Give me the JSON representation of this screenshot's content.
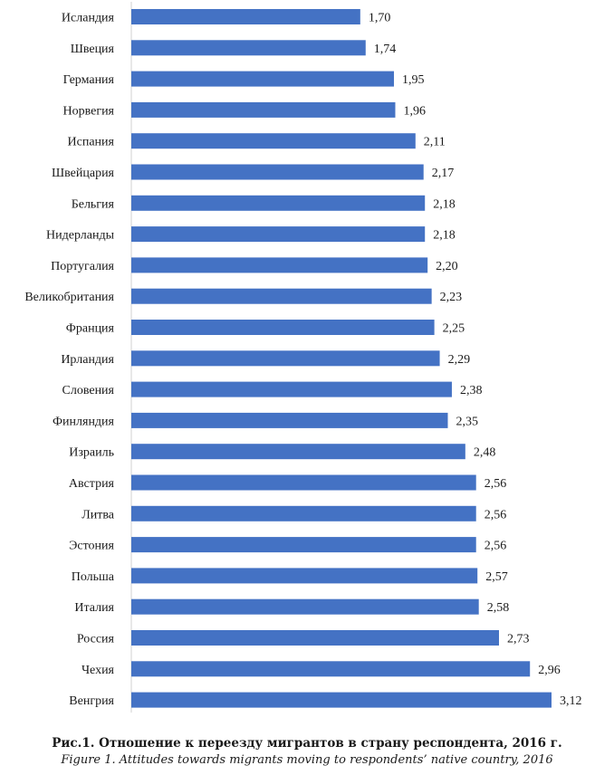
{
  "chart_data": {
    "type": "bar",
    "orientation": "horizontal",
    "categories": [
      "Исландия",
      "Швеция",
      "Германия",
      "Норвегия",
      "Испания",
      "Швейцария",
      "Бельгия",
      "Нидерланды",
      "Португалия",
      "Великобритания",
      "Франция",
      "Ирландия",
      "Словения",
      "Финляндия",
      "Израиль",
      "Австрия",
      "Литва",
      "Эстония",
      "Польша",
      "Италия",
      "Россия",
      "Чехия",
      "Венгрия"
    ],
    "values": [
      1.7,
      1.74,
      1.95,
      1.96,
      2.11,
      2.17,
      2.18,
      2.18,
      2.2,
      2.23,
      2.25,
      2.29,
      2.38,
      2.35,
      2.48,
      2.56,
      2.56,
      2.56,
      2.57,
      2.58,
      2.73,
      2.96,
      3.12
    ],
    "value_labels": [
      "1,70",
      "1,74",
      "1,95",
      "1,96",
      "2,11",
      "2,17",
      "2,18",
      "2,18",
      "2,20",
      "2,23",
      "2,25",
      "2,29",
      "2,38",
      "2,35",
      "2,48",
      "2,56",
      "2,56",
      "2,56",
      "2,57",
      "2,58",
      "2,73",
      "2,96",
      "3,12"
    ],
    "xlim": [
      0,
      3.12
    ],
    "grid": false,
    "legend": false,
    "bar_color": "#4472c4"
  },
  "caption": {
    "ru": "Рис.1. Отношение к переезду мигрантов в страну респондента, 2016 г.",
    "en": "Figure 1. Attitudes towards migrants moving to respondents’ native country, 2016"
  }
}
